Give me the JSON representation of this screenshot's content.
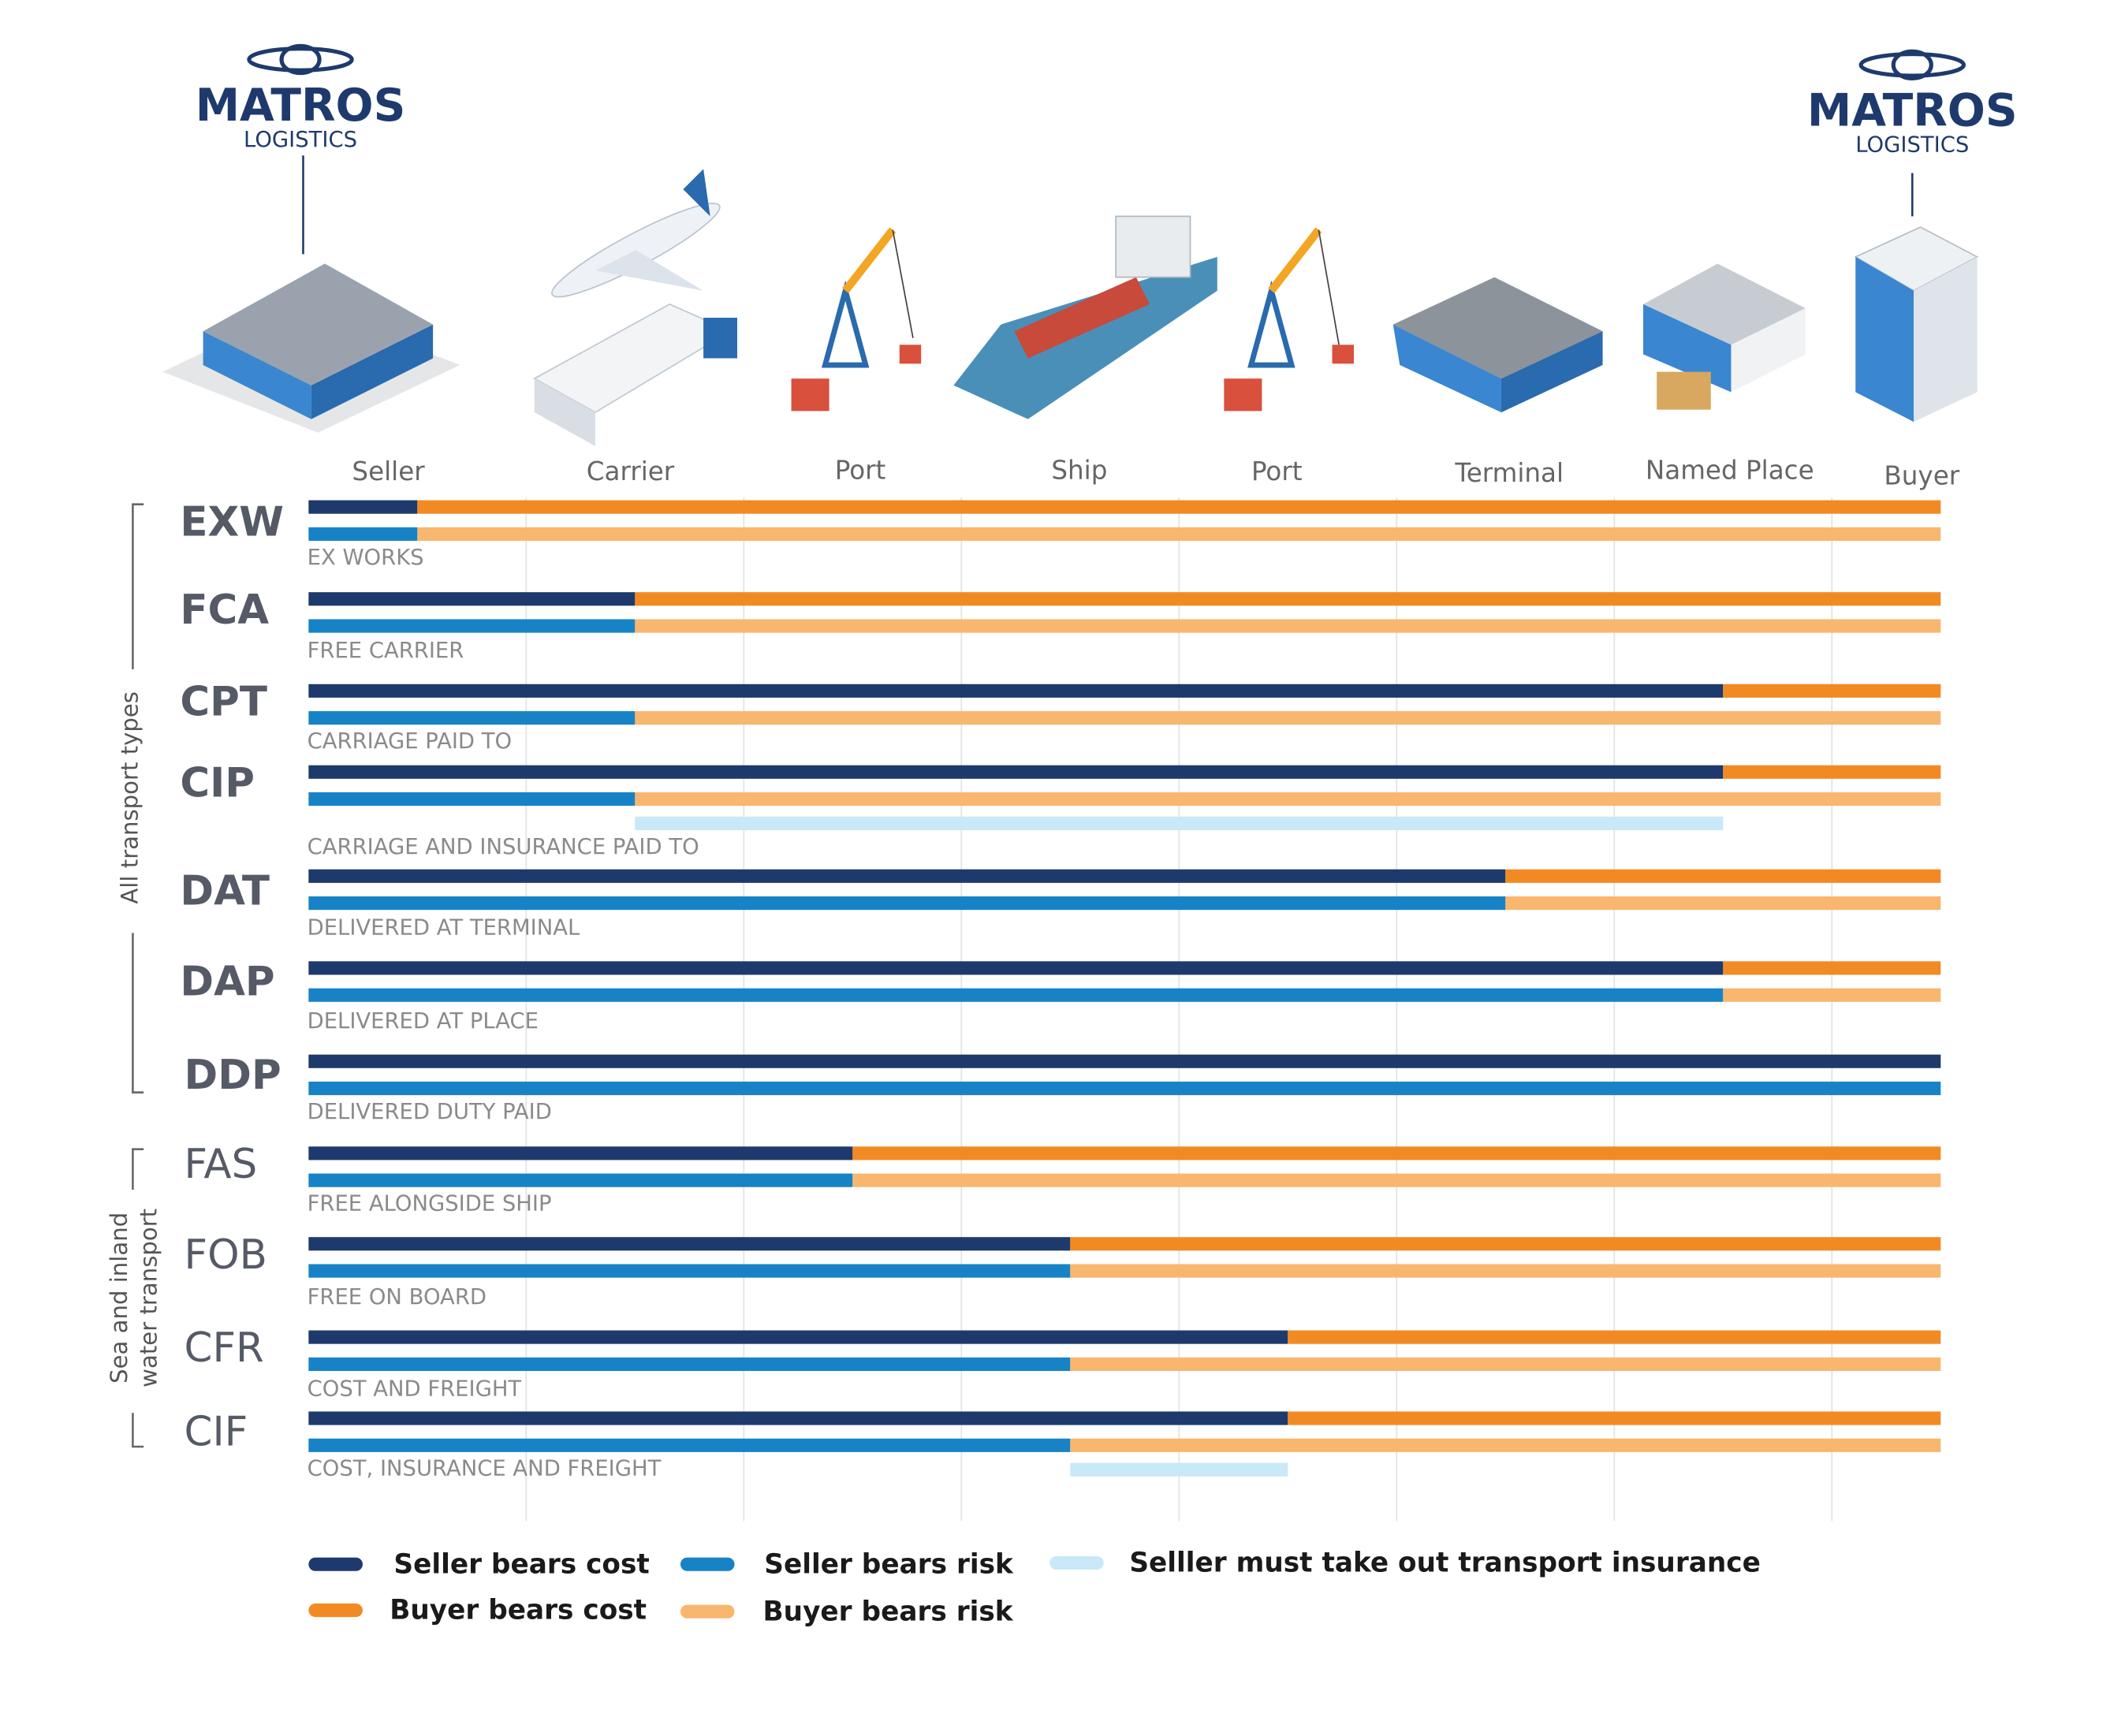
{
  "chart_data": {
    "type": "incoterms",
    "logo": {
      "name": "MATROS",
      "sub": "LOGISTICS"
    },
    "stages": [
      "Seller",
      "Carrier",
      "Port",
      "Ship",
      "Port",
      "Terminal",
      "Named Place",
      "Buyer"
    ],
    "xlim": [
      0,
      7.5
    ],
    "legend": [
      {
        "name": "Seller bears cost",
        "color": "#1e3a6d"
      },
      {
        "name": "Seller bears risk",
        "color": "#1783c6"
      },
      {
        "name": "Selller must take out transport insurance",
        "color": "#c9e8f8"
      },
      {
        "name": "Buyer bears cost",
        "color": "#f28a24"
      },
      {
        "name": "Buyer bears risk",
        "color": "#f9b66e"
      }
    ],
    "groups": [
      {
        "label": [
          "All transport types"
        ],
        "terms": [
          {
            "code": "EXW",
            "name": "EX WORKS",
            "cost": [
              0.5,
              7
            ],
            "risk": [
              0.5,
              7
            ]
          },
          {
            "code": "FCA",
            "name": "FREE CARRIER",
            "cost": [
              1.5,
              6
            ],
            "risk": [
              1.5,
              6
            ]
          },
          {
            "code": "CPT",
            "name": "CARRIAGE PAID TO",
            "cost": [
              6.5,
              1
            ],
            "risk": [
              1.5,
              6
            ]
          },
          {
            "code": "CIP",
            "name": "CARRIAGE AND INSURANCE PAID TO",
            "cost": [
              6.5,
              1
            ],
            "risk": [
              1.5,
              6
            ],
            "insurance": [
              1.5,
              6.5
            ]
          },
          {
            "code": "DAT",
            "name": "DELIVERED AT TERMINAL",
            "cost": [
              5.5,
              2
            ],
            "risk": [
              5.5,
              2
            ]
          },
          {
            "code": "DAP",
            "name": "DELIVERED AT PLACE",
            "cost": [
              6.5,
              1
            ],
            "risk": [
              6.5,
              1
            ]
          },
          {
            "code": "DDP",
            "name": "DELIVERED DUTY PAID",
            "cost": [
              7.5,
              0
            ],
            "risk": [
              7.5,
              0
            ]
          }
        ]
      },
      {
        "label": [
          "Sea and inland",
          "water transport"
        ],
        "terms": [
          {
            "code": "FAS",
            "name": "FREE ALONGSIDE SHIP",
            "cost": [
              2.5,
              5
            ],
            "risk": [
              2.5,
              5
            ]
          },
          {
            "code": "FOB",
            "name": "FREE ON BOARD",
            "cost": [
              3.5,
              4
            ],
            "risk": [
              3.5,
              4
            ]
          },
          {
            "code": "CFR",
            "name": "COST AND FREIGHT",
            "cost": [
              4.5,
              3
            ],
            "risk": [
              3.5,
              4
            ]
          },
          {
            "code": "CIF",
            "name": "COST, INSURANCE AND FREIGHT",
            "cost": [
              4.5,
              3
            ],
            "risk": [
              3.5,
              4
            ],
            "insurance": [
              3.5,
              4.5
            ]
          }
        ]
      }
    ]
  }
}
